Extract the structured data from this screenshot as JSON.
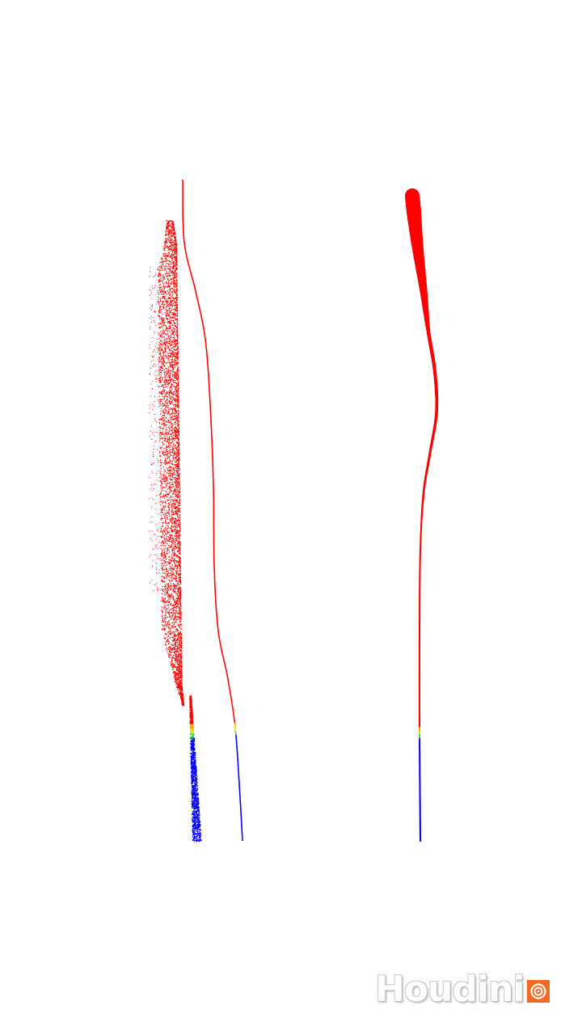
{
  "viewport": {
    "background": "#ffffff"
  },
  "palette": {
    "hot": "#ff0000",
    "warm": "#ffaa00",
    "mid_yellow": "#dddd00",
    "mid_green": "#22dd44",
    "cold": "#0000ff"
  },
  "scene_description_items": [
    {
      "name": "strand-left-scatter",
      "style": "scattered-particles"
    },
    {
      "name": "strand-left-thin",
      "style": "thin-curve"
    },
    {
      "name": "strand-right-ribbon",
      "style": "ribbon-curve"
    }
  ],
  "watermark": {
    "brand_text": "Houdini",
    "logo_icon": "houdini-spiral-icon",
    "logo_color": "#f26b21"
  }
}
